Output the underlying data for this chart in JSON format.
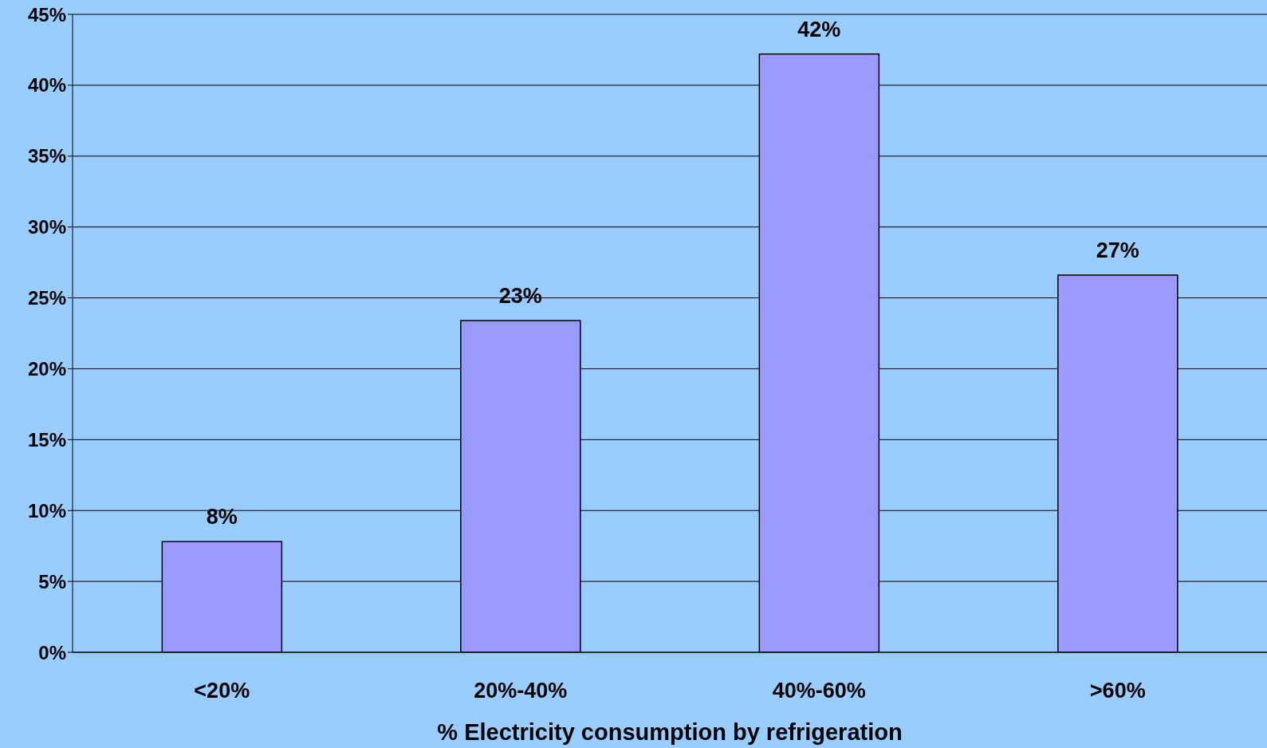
{
  "chart_data": {
    "type": "bar",
    "xlabel": "% Electricity consumption by refrigeration",
    "categories": [
      "<20%",
      "20%-40%",
      "40%-60%",
      ">60%"
    ],
    "values": [
      7.8,
      23.4,
      42.2,
      26.6
    ],
    "value_labels": [
      "8%",
      "23%",
      "42%",
      "27%"
    ],
    "color": "#9999ff",
    "ylim": [
      0,
      45
    ],
    "yticks": [
      {
        "value": 0,
        "label": "0%"
      },
      {
        "value": 5,
        "label": "5%"
      },
      {
        "value": 10,
        "label": "10%"
      },
      {
        "value": 15,
        "label": "15%"
      },
      {
        "value": 20,
        "label": "20%"
      },
      {
        "value": 25,
        "label": "25%"
      },
      {
        "value": 30,
        "label": "30%"
      },
      {
        "value": 35,
        "label": "35%"
      },
      {
        "value": 40,
        "label": "40%"
      },
      {
        "value": 45,
        "label": "45%"
      }
    ],
    "grid": "y",
    "legend": false
  }
}
